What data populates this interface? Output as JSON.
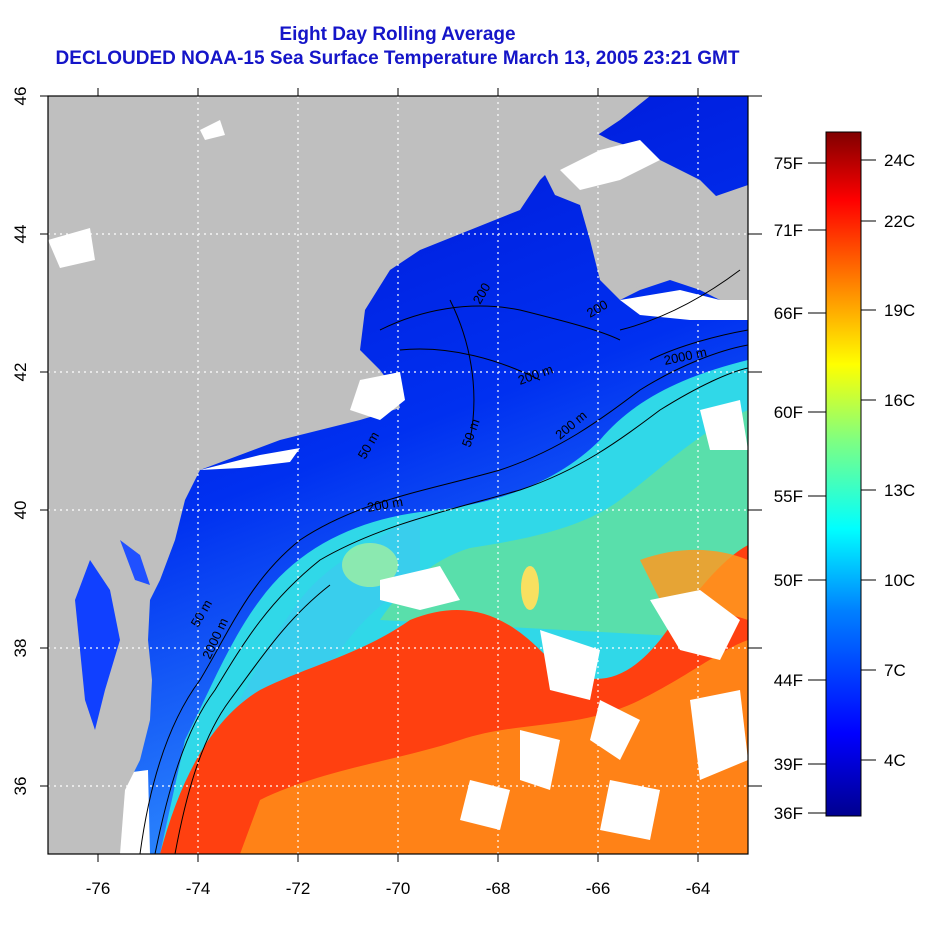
{
  "title_line1": "Eight Day Rolling Average",
  "title_line2": "DECLOUDED NOAA-15 Sea Surface Temperature March 13, 2005 23:21 GMT",
  "map": {
    "lon_labels": [
      "-76",
      "-74",
      "-72",
      "-70",
      "-68",
      "-66",
      "-64"
    ],
    "lat_labels": [
      "46",
      "44",
      "42",
      "40",
      "38",
      "36"
    ],
    "lon_range": [
      -77,
      -63
    ],
    "lat_range": [
      35,
      46
    ],
    "contour_labels": [
      "50 m",
      "200 m",
      "2000 m",
      "200 m",
      "50 m",
      "200 m",
      "50 m",
      "200",
      "200",
      "2000 m"
    ],
    "colors": {
      "land": "#bfbfbf",
      "cloud": "#ffffff",
      "title": "#1515c8",
      "grid": "#ffffff"
    }
  },
  "colorbar": {
    "celsius_labels": [
      "24C",
      "22C",
      "19C",
      "16C",
      "13C",
      "10C",
      "7C",
      "4C"
    ],
    "fahrenheit_labels": [
      "75F",
      "71F",
      "66F",
      "60F",
      "55F",
      "50F",
      "44F",
      "39F",
      "36F"
    ],
    "range_c": [
      2,
      25
    ],
    "colormap": [
      "#00008f",
      "#0000ff",
      "#0080ff",
      "#00ffff",
      "#80ff80",
      "#ffff00",
      "#ff8000",
      "#ff0000",
      "#800000"
    ]
  }
}
